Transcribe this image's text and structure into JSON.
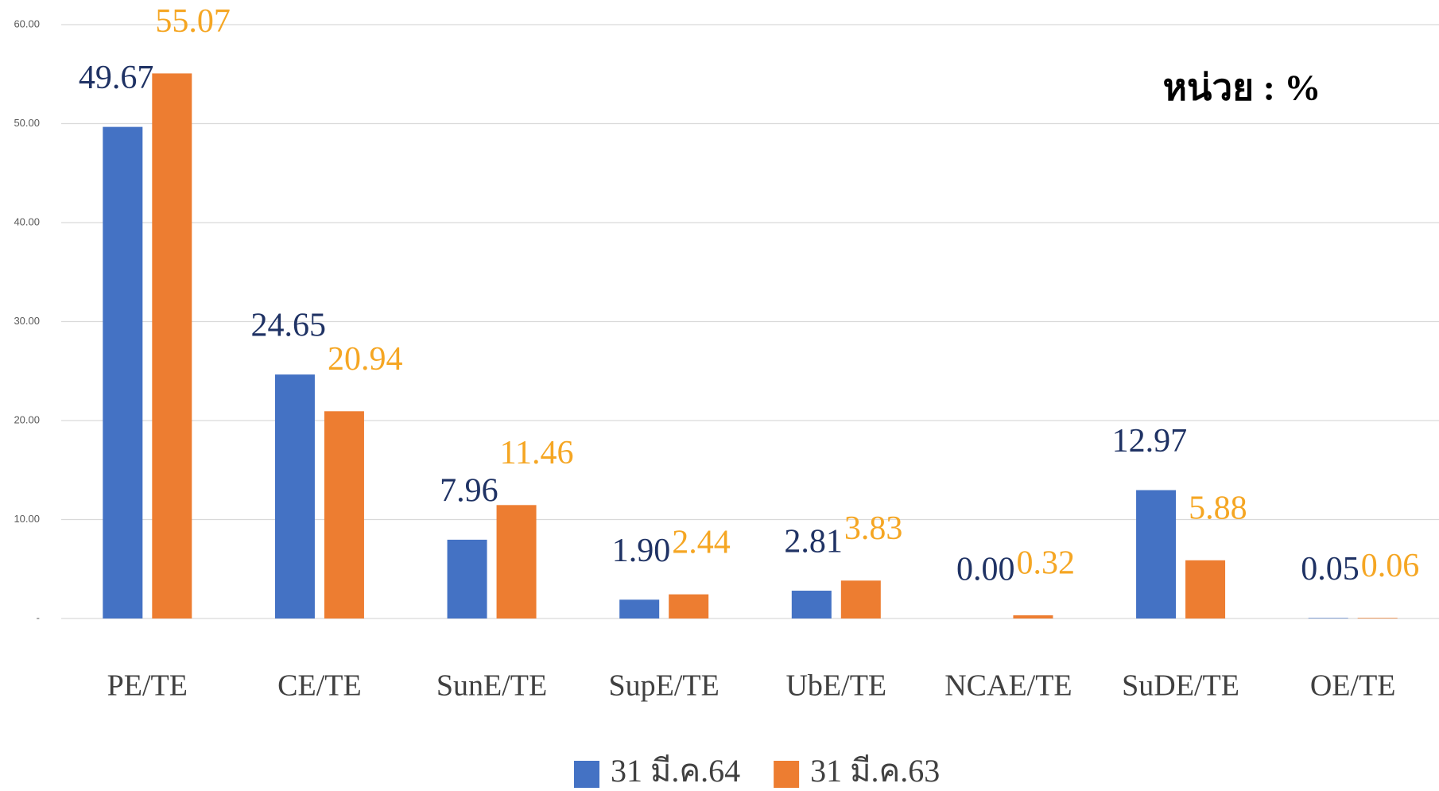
{
  "chart_data": {
    "type": "bar",
    "annotation": "หน่วย : %",
    "categories": [
      "PE/TE",
      "CE/TE",
      "SunE/TE",
      "SupE/TE",
      "UbE/TE",
      "NCAE/TE",
      "SuDE/TE",
      "OE/TE"
    ],
    "series": [
      {
        "name": "31 มี.ค.64",
        "color": "#4472c4",
        "label_color": "#1f3264",
        "values": [
          49.67,
          24.65,
          7.96,
          1.9,
          2.81,
          0,
          12.97,
          0.05
        ],
        "value_labels": [
          "49.67",
          "24.65",
          "7.96",
          "1.90",
          "2.81",
          "0.00",
          "12.97",
          "0.05"
        ]
      },
      {
        "name": "31 มี.ค.63",
        "color": "#ed7d31",
        "label_color": "#f5a623",
        "values": [
          55.07,
          20.94,
          11.46,
          2.44,
          3.83,
          0.32,
          5.88,
          0.06
        ],
        "value_labels": [
          "55.07",
          "20.94",
          "11.46",
          "2.44",
          "3.83",
          "0.32",
          "5.88",
          "0.06"
        ]
      }
    ],
    "ylim": [
      0,
      60
    ],
    "yticks": [
      {
        "value": 0,
        "label": "-"
      },
      {
        "value": 10,
        "label": "10.00"
      },
      {
        "value": 20,
        "label": "20.00"
      },
      {
        "value": 30,
        "label": "30.00"
      },
      {
        "value": 40,
        "label": "40.00"
      },
      {
        "value": 50,
        "label": "50.00"
      },
      {
        "value": 60,
        "label": "60.00"
      }
    ],
    "grid": true,
    "legend": "bottom"
  }
}
